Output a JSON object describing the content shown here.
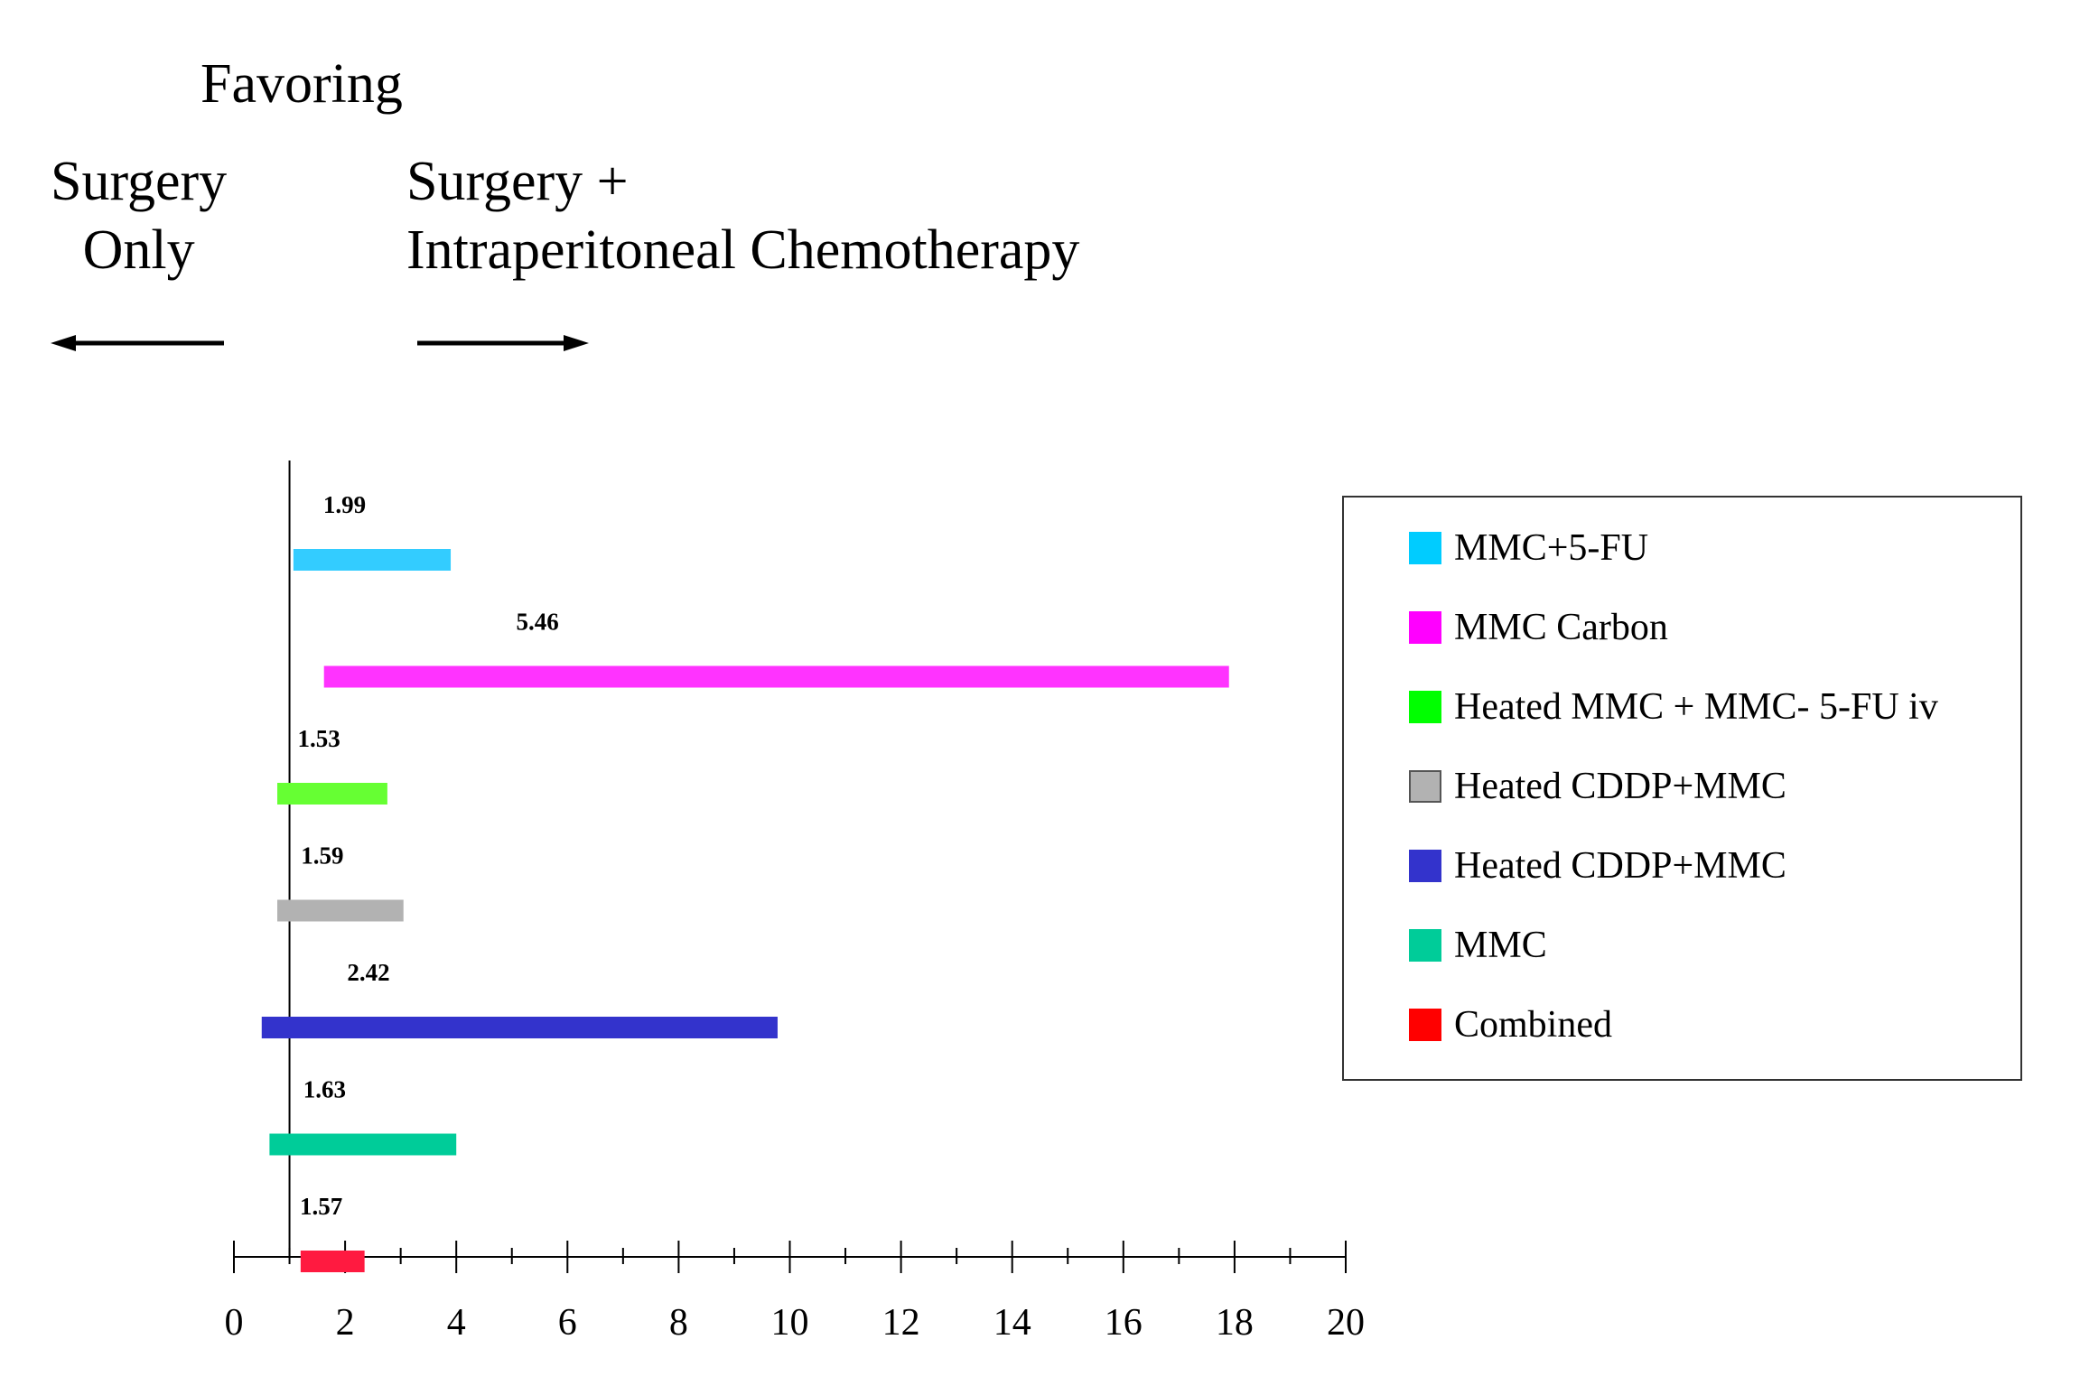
{
  "header": {
    "favoring": "Favoring",
    "left_lines": [
      "Surgery",
      "Only"
    ],
    "right_lines": [
      "Surgery +",
      "Intraperitoneal Chemotherapy"
    ]
  },
  "legend": {
    "items": [
      {
        "label": "MMC+5-FU",
        "color": "#00ccff"
      },
      {
        "label": "MMC Carbon",
        "color": "#ff00ff"
      },
      {
        "label": "Heated MMC + MMC- 5-FU iv",
        "color": "#00ff00"
      },
      {
        "label": "Heated CDDP+MMC",
        "color": "#b2b2b2"
      },
      {
        "label": "Heated CDDP+MMC",
        "color": "#3333cc"
      },
      {
        "label": "MMC",
        "color": "#00cc99"
      },
      {
        "label": "Combined",
        "color": "#ff0000"
      }
    ]
  },
  "chart_data": {
    "type": "forest",
    "xlim": [
      0,
      20
    ],
    "ticks": [
      "0",
      "2",
      "4",
      "6",
      "8",
      "10",
      "12",
      "14",
      "16",
      "18",
      "20"
    ],
    "reference_line": 1,
    "series": [
      {
        "name": "MMC+5-FU",
        "label": "1.99",
        "point": 1.99,
        "low": 1.07,
        "high": 3.9,
        "color": "#33ccff"
      },
      {
        "name": "MMC Carbon",
        "label": "5.46",
        "point": 5.46,
        "low": 1.62,
        "high": 17.9,
        "color": "#ff33ff"
      },
      {
        "name": "Heated MMC + MMC- 5-FU iv",
        "label": "1.53",
        "point": 1.53,
        "low": 0.78,
        "high": 2.76,
        "color": "#66ff33"
      },
      {
        "name": "Heated CDDP+MMC",
        "label": "1.59",
        "point": 1.59,
        "low": 0.78,
        "high": 3.05,
        "color": "#b2b2b2"
      },
      {
        "name": "Heated CDDP+MMC",
        "label": "2.42",
        "point": 2.42,
        "low": 0.5,
        "high": 9.78,
        "color": "#3333cc"
      },
      {
        "name": "MMC",
        "label": "1.63",
        "point": 1.63,
        "low": 0.64,
        "high": 4.0,
        "color": "#00cc99"
      },
      {
        "name": "Combined",
        "label": "1.57",
        "point": 1.57,
        "low": 1.2,
        "high": 2.35,
        "color": "#ff1a40"
      }
    ]
  }
}
